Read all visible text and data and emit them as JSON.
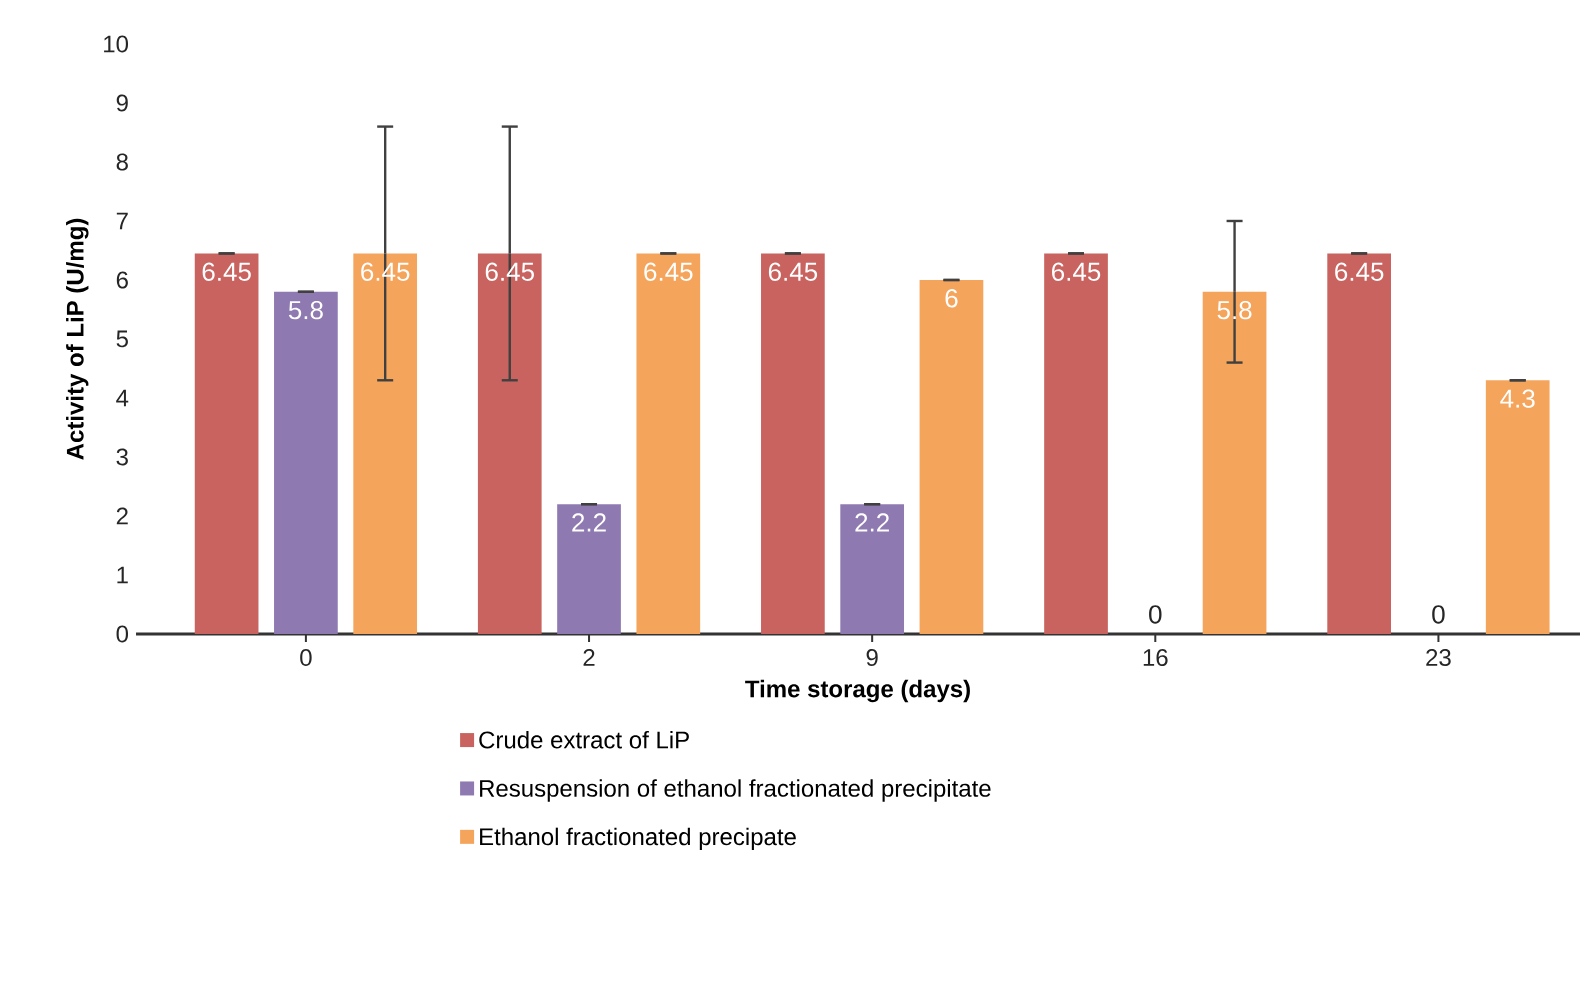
{
  "chart_data": {
    "type": "bar",
    "xlabel": "Time storage (days)",
    "ylabel": "Activity of LiP (U/mg)",
    "categories": [
      "0",
      "2",
      "9",
      "16",
      "23"
    ],
    "series": [
      {
        "name": "Crude extract of LiP",
        "color": "#c9635f",
        "values": [
          6.45,
          6.45,
          6.45,
          6.45,
          6.45
        ],
        "errors": [
          0,
          2.15,
          0,
          0,
          0
        ]
      },
      {
        "name": "Resuspension of ethanol fractionated precipitate",
        "color": "#8e79b1",
        "values": [
          5.8,
          2.2,
          2.2,
          0,
          0
        ],
        "errors": [
          0,
          0,
          0,
          null,
          null
        ]
      },
      {
        "name": "Ethanol fractionated precipate",
        "color": "#f5a45c",
        "values": [
          6.45,
          6.45,
          6,
          5.8,
          4.3
        ],
        "errors": [
          2.15,
          0,
          0,
          1.2,
          0
        ]
      }
    ],
    "ylim": [
      0,
      10
    ],
    "yticks": [
      0,
      1,
      2,
      3,
      4,
      5,
      6,
      7,
      8,
      9,
      10
    ],
    "data_labels": true,
    "legend": "bottom",
    "grid": false
  }
}
